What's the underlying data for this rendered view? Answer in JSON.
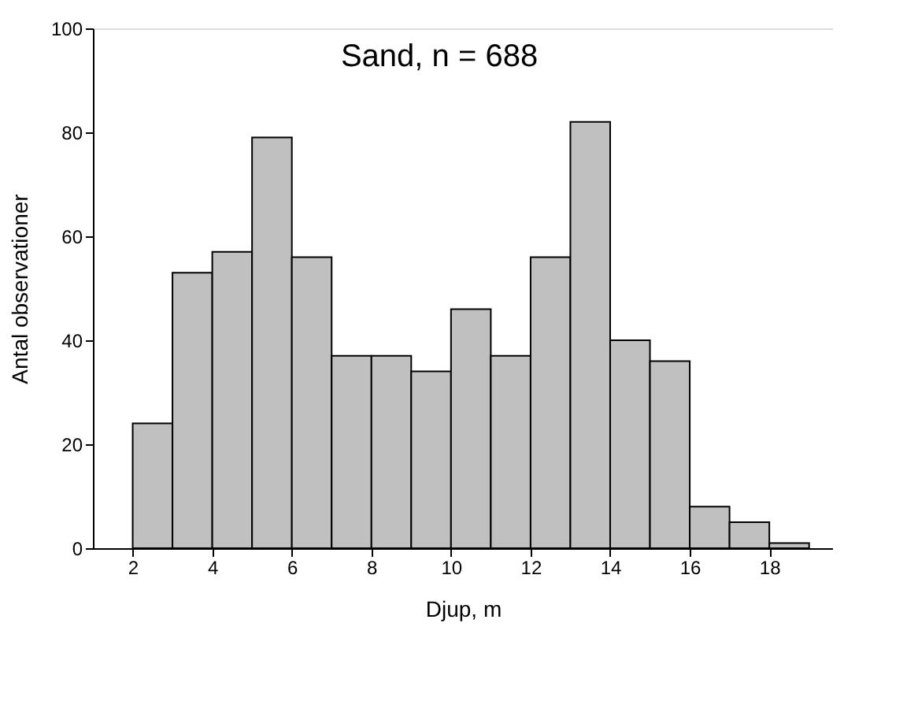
{
  "chart_data": {
    "type": "histogram",
    "title": "Sand, n = 688",
    "xlabel": "Djup, m",
    "ylabel": "Antal observationer",
    "bins": [
      2,
      3,
      4,
      5,
      6,
      7,
      8,
      9,
      10,
      11,
      12,
      13,
      14,
      15,
      16,
      17,
      18,
      19
    ],
    "values": [
      24,
      53,
      57,
      79,
      56,
      37,
      37,
      34,
      46,
      37,
      56,
      82,
      40,
      36,
      8,
      5,
      1
    ],
    "color": "#c0c0c0",
    "xlim": [
      1,
      19.6
    ],
    "xticks": [
      2,
      4,
      6,
      8,
      10,
      12,
      14,
      16,
      18
    ],
    "ylim": [
      0,
      100
    ],
    "yticks": [
      0,
      20,
      40,
      60,
      80,
      100
    ],
    "grid": false
  }
}
